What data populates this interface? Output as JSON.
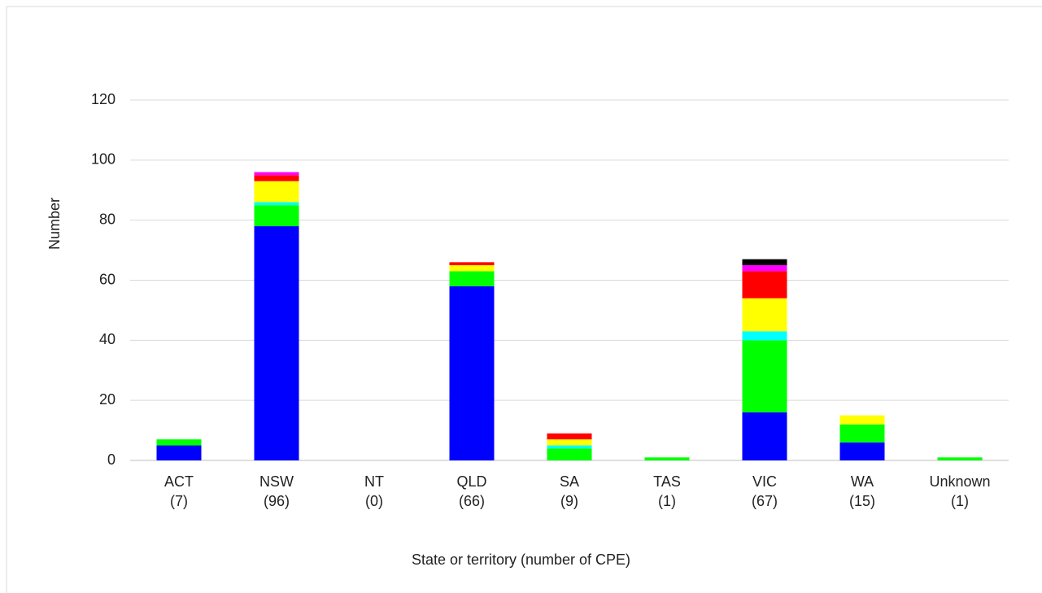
{
  "chart_data": {
    "type": "bar",
    "stacked": true,
    "x_label": "State or territory (number of CPE)",
    "y_label": "Number",
    "categories": [
      "ACT\n(7)",
      "NSW\n(96)",
      "NT\n(0)",
      "QLD\n(66)",
      "SA\n(9)",
      "TAS\n(1)",
      "VIC\n(67)",
      "WA\n(15)",
      "Unknown\n(1)"
    ],
    "series": [
      {
        "color": "#0000ff",
        "values": [
          5,
          78,
          0,
          58,
          0,
          0,
          16,
          6,
          0
        ]
      },
      {
        "color": "#00ff00",
        "values": [
          2,
          7,
          0,
          5,
          4,
          1,
          24,
          6,
          1
        ]
      },
      {
        "color": "#00ffff",
        "values": [
          0,
          1,
          0,
          0,
          1,
          0,
          3,
          0,
          0
        ]
      },
      {
        "color": "#ffff00",
        "values": [
          0,
          7,
          0,
          2,
          2,
          0,
          11,
          3,
          0
        ]
      },
      {
        "color": "#ff0000",
        "values": [
          0,
          2,
          0,
          1,
          2,
          0,
          9,
          0,
          0
        ]
      },
      {
        "color": "#ff00ff",
        "values": [
          0,
          1,
          0,
          0,
          0,
          0,
          2,
          0,
          0
        ]
      },
      {
        "color": "#000000",
        "values": [
          0,
          0,
          0,
          0,
          0,
          0,
          2,
          0,
          0
        ]
      }
    ],
    "ylim": [
      0,
      120
    ],
    "yticks": [
      0,
      20,
      40,
      60,
      80,
      100,
      120
    ],
    "grid": true
  }
}
